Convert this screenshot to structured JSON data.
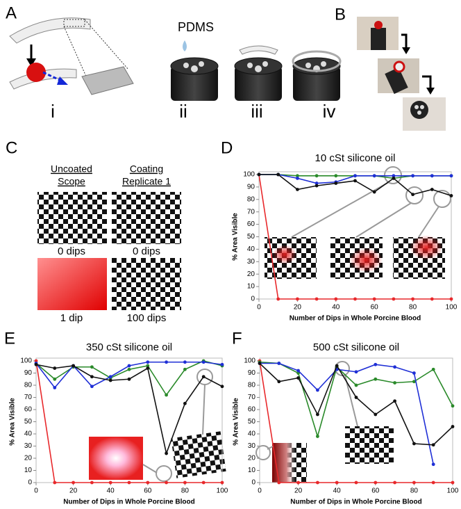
{
  "figure": {
    "panel_labels": [
      "A",
      "B",
      "C",
      "D",
      "E",
      "F"
    ],
    "panel_a": {
      "liquid": "PDMS",
      "steps": [
        "i",
        "ii",
        "iii",
        "iv"
      ]
    },
    "panel_c": {
      "headers": [
        [
          "Uncoated",
          "Scope"
        ],
        [
          "Coating",
          "Replicate 1"
        ]
      ],
      "captions": [
        "0 dips",
        "0 dips",
        "1 dip",
        "100 dips"
      ]
    }
  },
  "chart_data": [
    {
      "type": "line",
      "title": "10 cSt silicone oil",
      "x_label": "Number of Dips in Whole Porcine Blood",
      "y_label": "% Area Visible",
      "x": [
        0,
        10,
        20,
        30,
        40,
        50,
        60,
        70,
        80,
        90,
        100
      ],
      "xlim": [
        0,
        100
      ],
      "ylim": [
        0,
        100
      ],
      "xticks": [
        0,
        20,
        40,
        60,
        80,
        100
      ],
      "yticks": [
        0,
        10,
        20,
        30,
        40,
        50,
        60,
        70,
        80,
        90,
        100
      ],
      "series": [
        {
          "color": "#e8282b",
          "values": [
            100,
            0,
            0,
            0,
            0,
            0,
            0,
            0,
            0,
            0,
            0
          ]
        },
        {
          "color": "#2a8a2a",
          "values": [
            100,
            100,
            99,
            99,
            99,
            99,
            99,
            97,
            99,
            99,
            99
          ]
        },
        {
          "color": "#1f2fd6",
          "values": [
            100,
            100,
            97,
            93,
            94,
            99,
            99,
            99,
            99,
            99,
            99
          ]
        },
        {
          "color": "#111111",
          "values": [
            100,
            100,
            88,
            91,
            93,
            95,
            86,
            97,
            84,
            88,
            83
          ]
        }
      ]
    },
    {
      "type": "line",
      "title": "350 cSt silicone oil",
      "x_label": "Number of Dips in Whole Porcine Blood",
      "y_label": "% Area Visible",
      "x": [
        0,
        10,
        20,
        30,
        40,
        50,
        60,
        70,
        80,
        90,
        100
      ],
      "xlim": [
        0,
        100
      ],
      "ylim": [
        0,
        100
      ],
      "xticks": [
        0,
        20,
        40,
        60,
        80,
        100
      ],
      "yticks": [
        0,
        10,
        20,
        30,
        40,
        50,
        60,
        70,
        80,
        90,
        100
      ],
      "series": [
        {
          "color": "#e8282b",
          "values": [
            100,
            0,
            0,
            0,
            0,
            0,
            0,
            0,
            0,
            0,
            0
          ]
        },
        {
          "color": "#2a8a2a",
          "values": [
            98,
            85,
            95,
            95,
            86,
            93,
            96,
            72,
            93,
            100,
            96
          ]
        },
        {
          "color": "#1f2fd6",
          "values": [
            98,
            78,
            96,
            79,
            87,
            96,
            99,
            99,
            99,
            99,
            97
          ]
        },
        {
          "color": "#111111",
          "values": [
            97,
            94,
            96,
            87,
            84,
            85,
            94,
            24,
            65,
            87,
            79
          ]
        }
      ]
    },
    {
      "type": "line",
      "title": "500 cSt silicone oil",
      "x_label": "Number of Dips in Whole Porcine Blood",
      "y_label": "% Area Visible",
      "x": [
        0,
        10,
        20,
        30,
        40,
        50,
        60,
        70,
        80,
        90,
        100
      ],
      "xlim": [
        0,
        100
      ],
      "ylim": [
        0,
        100
      ],
      "xticks": [
        0,
        20,
        40,
        60,
        80,
        100
      ],
      "yticks": [
        0,
        10,
        20,
        30,
        40,
        50,
        60,
        70,
        80,
        90,
        100
      ],
      "series": [
        {
          "color": "#e8282b",
          "values": [
            100,
            0,
            0,
            0,
            0,
            0,
            0,
            0,
            0,
            0,
            0
          ]
        },
        {
          "color": "#2a8a2a",
          "values": [
            99,
            98,
            90,
            38,
            95,
            80,
            85,
            82,
            83,
            93,
            63
          ]
        },
        {
          "color": "#1f2fd6",
          "values": [
            98,
            98,
            92,
            76,
            93,
            91,
            97,
            95,
            90,
            15,
            null
          ]
        },
        {
          "color": "#111111",
          "values": [
            98,
            83,
            86,
            56,
            96,
            70,
            56,
            67,
            32,
            31,
            46
          ]
        }
      ]
    }
  ]
}
